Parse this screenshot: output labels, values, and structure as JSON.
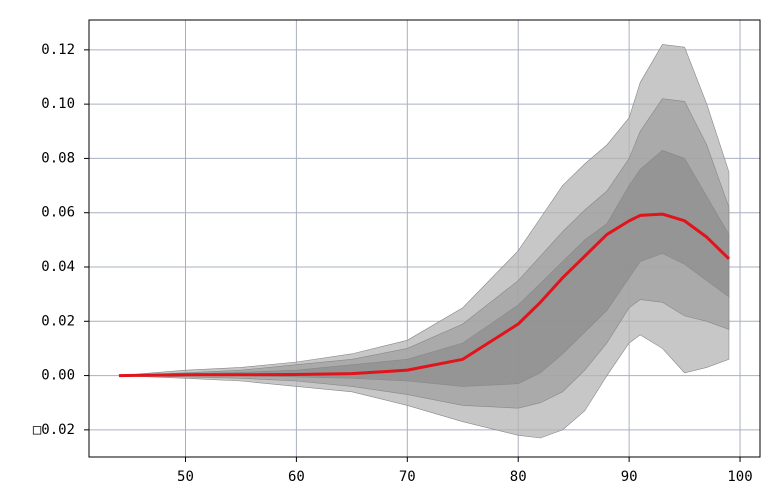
{
  "chart_data": {
    "type": "fan",
    "x": [
      44,
      50,
      55,
      60,
      65,
      70,
      75,
      80,
      82,
      84,
      86,
      88,
      90,
      91,
      93,
      95,
      97,
      99
    ],
    "bands": [
      {
        "color": "#b4b4b4",
        "upper": [
          0,
          0.002,
          0.003,
          0.005,
          0.008,
          0.013,
          0.025,
          0.046,
          0.058,
          0.07,
          0.078,
          0.085,
          0.095,
          0.108,
          0.122,
          0.121,
          0.1,
          0.075
        ],
        "lower": [
          0,
          -0.001,
          -0.002,
          -0.004,
          -0.006,
          -0.011,
          -0.017,
          -0.022,
          -0.023,
          -0.02,
          -0.013,
          0.0,
          0.012,
          0.015,
          0.01,
          0.001,
          0.003,
          0.006
        ]
      },
      {
        "color": "#a0a0a0",
        "upper": [
          0,
          0.001,
          0.002,
          0.004,
          0.006,
          0.01,
          0.019,
          0.035,
          0.044,
          0.053,
          0.061,
          0.068,
          0.08,
          0.09,
          0.102,
          0.101,
          0.085,
          0.062
        ],
        "lower": [
          0,
          -0.0005,
          -0.001,
          -0.002,
          -0.004,
          -0.007,
          -0.011,
          -0.012,
          -0.01,
          -0.006,
          0.002,
          0.012,
          0.025,
          0.028,
          0.027,
          0.022,
          0.02,
          0.017
        ]
      },
      {
        "color": "#8e8e8e",
        "upper": [
          0,
          0.0007,
          0.0012,
          0.002,
          0.004,
          0.006,
          0.012,
          0.026,
          0.034,
          0.042,
          0.05,
          0.056,
          0.07,
          0.076,
          0.083,
          0.08,
          0.066,
          0.052
        ],
        "lower": [
          0,
          0,
          0,
          -0.0005,
          -0.001,
          -0.002,
          -0.004,
          -0.003,
          0.001,
          0.008,
          0.016,
          0.024,
          0.036,
          0.042,
          0.045,
          0.041,
          0.035,
          0.029
        ]
      }
    ],
    "line": {
      "color": "#e0141a",
      "values": [
        0,
        0.0003,
        0.0003,
        0.0004,
        0.0007,
        0.002,
        0.006,
        0.019,
        0.027,
        0.036,
        0.044,
        0.052,
        0.057,
        0.059,
        0.0595,
        0.057,
        0.051,
        0.043
      ]
    },
    "xlim": [
      41.3,
      101.8
    ],
    "ylim": [
      -0.03,
      0.131
    ],
    "xticks": [
      50,
      60,
      70,
      80,
      90,
      100
    ],
    "yticks": [
      {
        "value": -0.02,
        "label": "□0.02"
      },
      {
        "value": 0,
        "label": "0.00"
      },
      0.02,
      0.04,
      0.06,
      0.08,
      {
        "value": 0.1,
        "label": "0.10"
      },
      0.12
    ],
    "grid": true
  }
}
